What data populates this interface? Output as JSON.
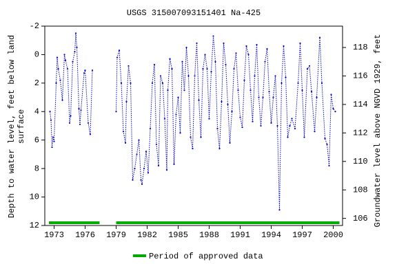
{
  "chart_data": {
    "type": "line",
    "title": "USGS 315007093151401 Na-425",
    "y_label": "Depth to water level, feet below land surface",
    "y2_label": "Groundwater level above NGVD 1929, feet",
    "xlim": [
      1972.1,
      2000.9
    ],
    "xticks": [
      1973,
      1976,
      1979,
      1982,
      1985,
      1988,
      1991,
      1994,
      1997,
      2000
    ],
    "ylim": [
      -2,
      12
    ],
    "y_inverted": true,
    "yticks": [
      -2,
      0,
      2,
      4,
      6,
      8,
      10,
      12
    ],
    "y2lim": [
      119.5,
      105.5
    ],
    "y2ticks": [
      106,
      108,
      110,
      112,
      114,
      116,
      118
    ],
    "series": [
      {
        "name": "Depth to water level",
        "color": "#0000cc",
        "x": [
          1972.6,
          1972.7,
          1972.8,
          1972.9,
          1973.0,
          1973.2,
          1973.3,
          1973.4,
          1973.6,
          1973.8,
          1974.0,
          1974.1,
          1974.3,
          1974.5,
          1974.6,
          1974.8,
          1975.0,
          1975.1,
          1975.2,
          1975.4,
          1975.5,
          1975.6,
          1975.9,
          1976.0,
          1976.3,
          1976.5,
          1976.7,
          1978.0,
          1979.0,
          1979.1,
          1979.3,
          1979.5,
          1979.7,
          1979.9,
          1980.0,
          1980.2,
          1980.4,
          1980.6,
          1980.8,
          1981.0,
          1981.2,
          1981.4,
          1981.5,
          1981.7,
          1981.9,
          1982.1,
          1982.3,
          1982.5,
          1982.7,
          1982.9,
          1983.1,
          1983.3,
          1983.5,
          1983.7,
          1983.9,
          1984.0,
          1984.2,
          1984.4,
          1984.6,
          1984.8,
          1985.0,
          1985.2,
          1985.4,
          1985.6,
          1985.8,
          1986.0,
          1986.2,
          1986.4,
          1986.6,
          1986.8,
          1987.0,
          1987.2,
          1987.4,
          1987.6,
          1987.8,
          1988.0,
          1988.2,
          1988.4,
          1988.6,
          1988.8,
          1989.0,
          1989.2,
          1989.4,
          1989.6,
          1989.8,
          1990.0,
          1990.2,
          1990.4,
          1990.6,
          1990.8,
          1991.0,
          1991.2,
          1991.4,
          1991.6,
          1991.8,
          1992.0,
          1992.2,
          1992.4,
          1992.6,
          1992.8,
          1993.0,
          1993.2,
          1993.4,
          1993.6,
          1993.8,
          1994.0,
          1994.2,
          1994.4,
          1994.6,
          1994.8,
          1995.0,
          1995.2,
          1995.4,
          1995.6,
          1995.8,
          1996.0,
          1996.3,
          1996.6,
          1996.8,
          1997.0,
          1997.2,
          1997.5,
          1997.7,
          1997.9,
          1998.2,
          1998.4,
          1998.7,
          1998.9,
          1999.2,
          1999.4,
          1999.6,
          1999.8,
          2000.0,
          2000.2
        ],
        "values": [
          4.0,
          4.6,
          6.5,
          5.8,
          6.1,
          2.0,
          0.2,
          1.0,
          1.8,
          3.2,
          0.0,
          0.4,
          1.0,
          4.8,
          4.3,
          0.5,
          -0.2,
          -1.5,
          -0.5,
          3.8,
          4.9,
          3.9,
          1.3,
          1.1,
          4.8,
          5.6,
          1.1,
          null,
          4.0,
          0.2,
          -0.3,
          2.0,
          5.4,
          6.2,
          3.3,
          0.8,
          2.0,
          8.8,
          8.0,
          7.0,
          6.0,
          8.8,
          9.1,
          8.0,
          6.8,
          8.3,
          5.2,
          2.0,
          0.7,
          6.3,
          7.8,
          1.5,
          2.0,
          4.5,
          8.1,
          2.5,
          0.3,
          1.0,
          7.7,
          4.2,
          3.0,
          5.5,
          0.5,
          2.5,
          -0.5,
          1.5,
          5.8,
          6.6,
          1.5,
          -0.8,
          3.2,
          5.8,
          1.0,
          0.0,
          1.0,
          4.5,
          1.2,
          -1.3,
          0.5,
          5.2,
          6.6,
          3.3,
          -0.8,
          0.7,
          3.5,
          6.2,
          4.0,
          1.0,
          -0.1,
          2.5,
          4.4,
          5.1,
          1.8,
          -0.6,
          0.0,
          2.5,
          4.7,
          1.5,
          -0.7,
          3.0,
          5.0,
          3.0,
          0.5,
          -0.4,
          2.6,
          4.8,
          3.0,
          1.5,
          5.0,
          10.9,
          2.0,
          -0.6,
          1.6,
          5.8,
          5.0,
          4.5,
          5.2,
          2.0,
          -0.8,
          2.5,
          5.8,
          1.0,
          0.8,
          2.6,
          5.4,
          3.0,
          -1.2,
          2.0,
          5.9,
          6.3,
          7.8,
          2.8,
          3.8,
          4.0
        ]
      }
    ],
    "approved_periods": [
      [
        1972.5,
        1977.4
      ],
      [
        1979.0,
        2000.6
      ]
    ],
    "approved_color": "#00aa00",
    "legend": "Period of approved data"
  }
}
